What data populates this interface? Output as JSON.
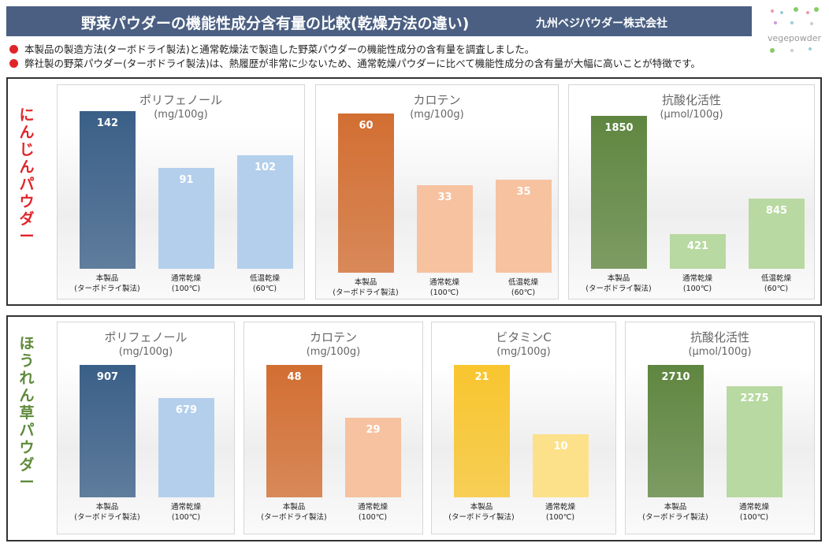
{
  "header": {
    "title": "野菜パウダーの機能性成分含有量の比較(乾燥方法の違い)",
    "company": "九州ベジパウダー株式会社"
  },
  "notes": [
    "本製品の製造方法(ターボドライ製法)と通常乾燥法で製造した野菜パウダーの機能性成分の含有量を調査しました。",
    "弊社製の野菜パウダー(ターボドライ製法)は、熱履歴が非常に少ないため、通常乾燥パウダーに比べて機能性成分の含有量が大幅に高いことが特徴です。"
  ],
  "logo": {
    "text": "vegepowder"
  },
  "rows": [
    {
      "label": "にんじんパウダー",
      "color": "#e0252a"
    },
    {
      "label": "ほうれん草パウダー",
      "color": "#5e8a3a"
    }
  ],
  "chart_data": [
    {
      "type": "bar",
      "row": 0,
      "title": "ポリフェノール",
      "unit": "(mg/100g)",
      "categories": [
        [
          "本製品",
          "(ターボドライ製法)"
        ],
        [
          "通常乾燥",
          "(100℃)"
        ],
        [
          "低温乾燥",
          "(60℃)"
        ]
      ],
      "values": [
        142,
        91,
        102
      ],
      "colors": [
        "#3a5f87",
        "#b4cfec",
        "#b4cfec"
      ]
    },
    {
      "type": "bar",
      "row": 0,
      "title": "カロテン",
      "unit": "(mg/100g)",
      "categories": [
        [
          "本製品",
          "(ターボドライ製法)"
        ],
        [
          "通常乾燥",
          "(100℃)"
        ],
        [
          "低温乾燥",
          "(60℃)"
        ]
      ],
      "values": [
        60,
        33,
        35
      ],
      "colors": [
        "#d26e32",
        "#f6c2a0",
        "#f6c2a0"
      ]
    },
    {
      "type": "bar",
      "row": 0,
      "title": "抗酸化活性",
      "unit": "(μmol/100g)",
      "categories": [
        [
          "本製品",
          "(ターボドライ製法)"
        ],
        [
          "通常乾燥",
          "(100℃)"
        ],
        [
          "低温乾燥",
          "(60℃)"
        ]
      ],
      "values": [
        1850,
        421,
        845
      ],
      "colors": [
        "#5f8640",
        "#b8d9a1",
        "#b8d9a1"
      ]
    },
    {
      "type": "bar",
      "row": 1,
      "title": "ポリフェノール",
      "unit": "(mg/100g)",
      "categories": [
        [
          "本製品",
          "(ターボドライ製法)"
        ],
        [
          "通常乾燥",
          "(100℃)"
        ]
      ],
      "values": [
        907,
        679
      ],
      "colors": [
        "#3a5f87",
        "#b4cfec"
      ]
    },
    {
      "type": "bar",
      "row": 1,
      "title": "カロテン",
      "unit": "(mg/100g)",
      "categories": [
        [
          "本製品",
          "(ターボドライ製法)"
        ],
        [
          "通常乾燥",
          "(100℃)"
        ]
      ],
      "values": [
        48,
        29
      ],
      "colors": [
        "#d26e32",
        "#f6c2a0"
      ]
    },
    {
      "type": "bar",
      "row": 1,
      "title": "ビタミンC",
      "unit": "(mg/100g)",
      "categories": [
        [
          "本製品",
          "(ターボドライ製法)"
        ],
        [
          "通常乾燥",
          "(100℃)"
        ]
      ],
      "values": [
        21,
        10
      ],
      "colors": [
        "#f8c52e",
        "#fde18a"
      ]
    },
    {
      "type": "bar",
      "row": 1,
      "title": "抗酸化活性",
      "unit": "(μmol/100g)",
      "categories": [
        [
          "本製品",
          "(ターボドライ製法)"
        ],
        [
          "通常乾燥",
          "(100℃)"
        ]
      ],
      "values": [
        2710,
        2275
      ],
      "colors": [
        "#5f8640",
        "#b8d9a1"
      ]
    }
  ]
}
